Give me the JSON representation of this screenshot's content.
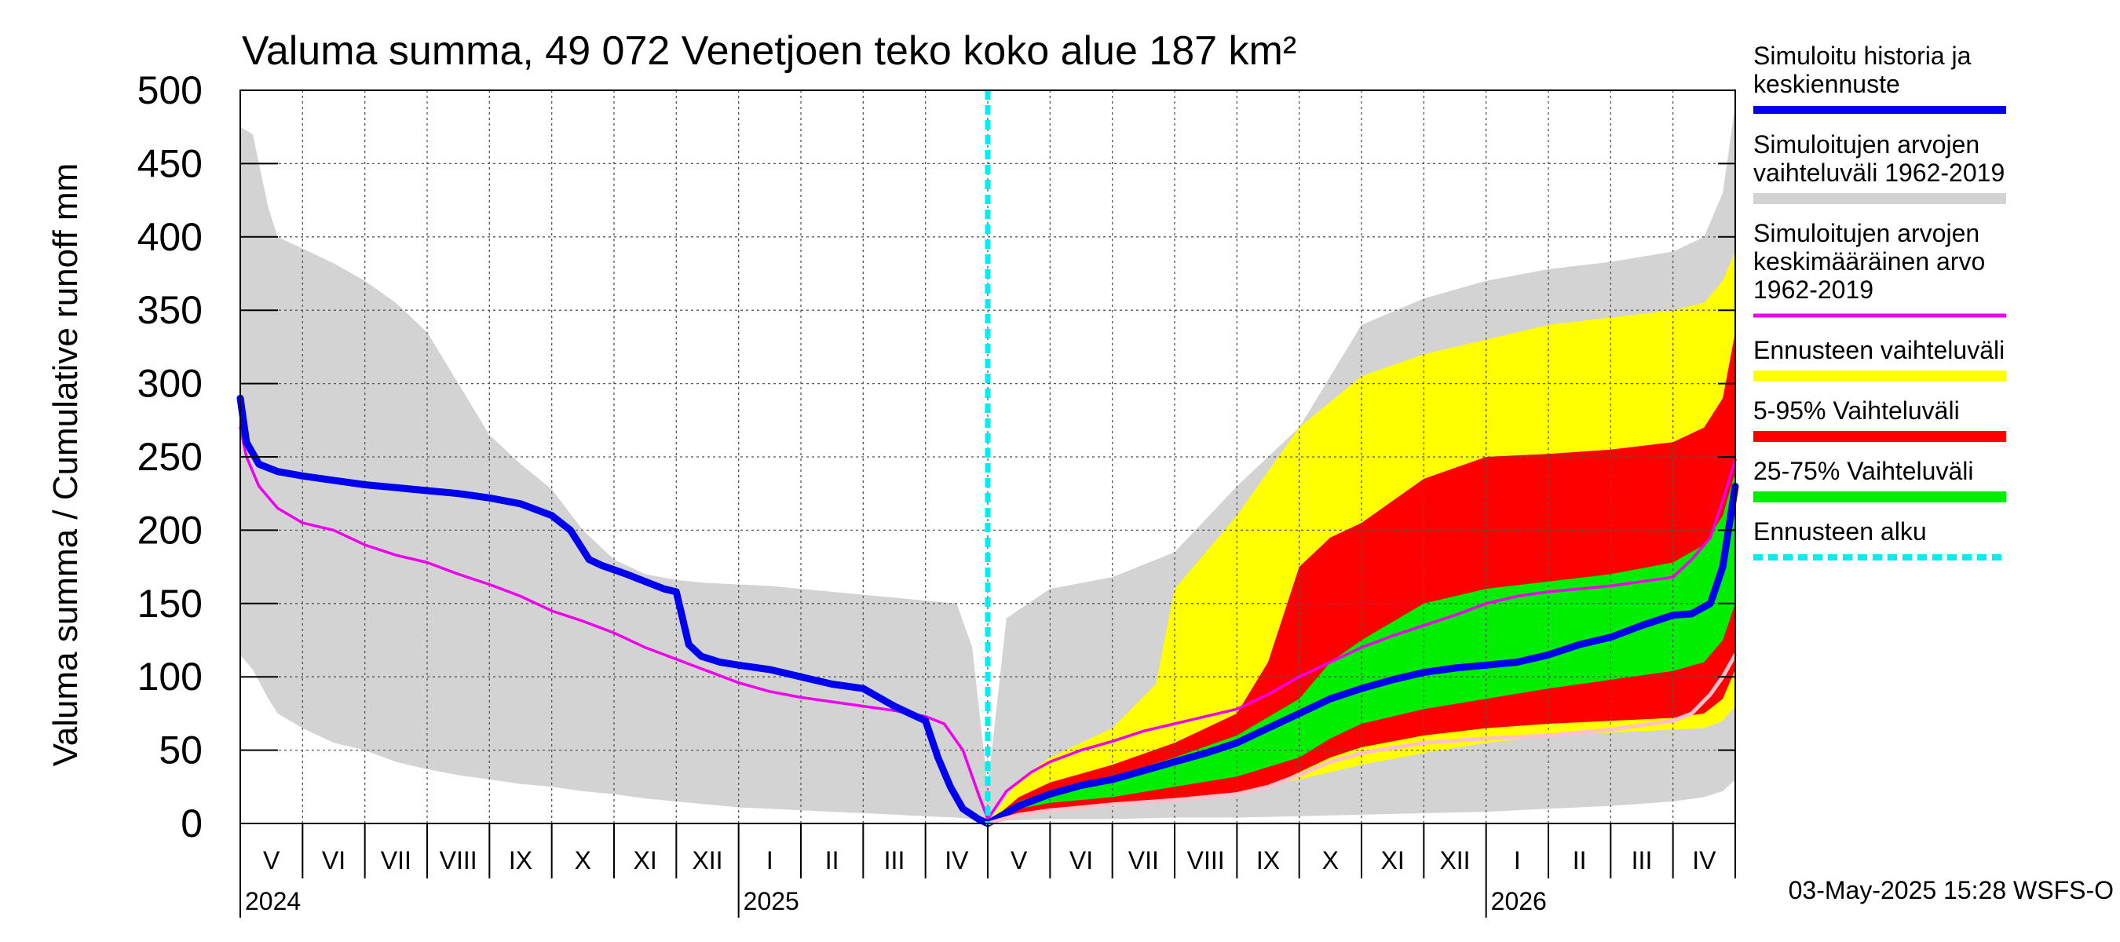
{
  "chart_data": {
    "type": "area",
    "title": "Valuma summa, 49 072 Venetjoen teko koko alue 187 km²",
    "ylabel": "Valuma summa / Cumulative runoff     mm",
    "ylim": [
      0,
      500
    ],
    "yticks": [
      0,
      50,
      100,
      150,
      200,
      250,
      300,
      350,
      400,
      450,
      500
    ],
    "xrange_months": [
      0,
      24
    ],
    "forecast_start_month": 12,
    "month_labels": [
      "V",
      "VI",
      "VII",
      "VIII",
      "IX",
      "X",
      "XI",
      "XII",
      "I",
      "II",
      "III",
      "IV",
      "V",
      "VI",
      "VII",
      "VIII",
      "IX",
      "X",
      "XI",
      "XII",
      "I",
      "II",
      "III",
      "IV"
    ],
    "year_labels": [
      {
        "label": "2024",
        "month": 0
      },
      {
        "label": "2025",
        "month": 8
      },
      {
        "label": "2026",
        "month": 20
      }
    ],
    "timestamp": "03-May-2025 15:28 WSFS-O",
    "legend": [
      {
        "label": "Simuloitu historia ja keskiennuste",
        "lines": [
          "Simuloitu historia ja",
          "keskiennuste"
        ],
        "color": "#0000ee",
        "style": "thick"
      },
      {
        "label": "Simuloitujen arvojen vaihteluväli 1962-2019",
        "lines": [
          "Simuloitujen arvojen",
          "vaihteluväli 1962-2019"
        ],
        "color": "#d3d3d3",
        "style": "band"
      },
      {
        "label": "Simuloitujen arvojen keskimääräinen arvo 1962-2019",
        "lines": [
          "Simuloitujen arvojen",
          "keskimääräinen arvo",
          "   1962-2019"
        ],
        "color": "#ee00ee",
        "style": "line"
      },
      {
        "label": "Ennusteen vaihteluväli",
        "lines": [
          "Ennusteen vaihteluväli"
        ],
        "color": "#ffff00",
        "style": "band"
      },
      {
        "label": "5-95% Vaihteluväli",
        "lines": [
          "5-95% Vaihteluväli"
        ],
        "color": "#ff0000",
        "style": "band"
      },
      {
        "label": "25-75% Vaihteluväli",
        "lines": [
          "25-75% Vaihteluväli"
        ],
        "color": "#00ee00",
        "style": "band"
      },
      {
        "label": "Ennusteen alku",
        "lines": [
          "Ennusteen alku"
        ],
        "color": "#00eeee",
        "style": "dashed"
      }
    ],
    "series": [
      {
        "name": "Simuloitujen arvojen vaihteluväli 1962-2019 (historia)",
        "color": "#d3d3d3",
        "x": [
          0,
          0.2,
          0.45,
          0.6,
          1.0,
          1.5,
          2.0,
          2.5,
          3.0,
          3.5,
          4.0,
          4.5,
          5.0,
          5.5,
          6.0,
          6.5,
          7.0,
          7.5,
          8.0,
          8.5,
          9.0,
          9.5,
          10.0,
          10.5,
          11.0,
          11.5,
          11.75,
          12.0
        ],
        "upper": [
          475,
          470,
          420,
          400,
          392,
          382,
          370,
          355,
          335,
          300,
          265,
          245,
          228,
          200,
          180,
          170,
          166,
          164,
          163,
          162,
          160,
          158,
          156,
          154,
          152,
          150,
          120,
          25
        ],
        "lower": [
          115,
          105,
          85,
          75,
          65,
          55,
          50,
          42,
          37,
          33,
          30,
          27,
          25,
          22,
          20,
          17,
          15,
          13,
          11,
          10,
          9,
          8,
          7,
          6,
          5,
          4,
          3,
          2
        ]
      },
      {
        "name": "Simuloitujen arvojen vaihteluväli 1962-2019 (ennuste)",
        "color": "#d3d3d3",
        "x": [
          12.0,
          12.3,
          13.0,
          14.0,
          15.0,
          16.0,
          17.0,
          18.0,
          19.0,
          20.0,
          21.0,
          22.0,
          23.0,
          23.5,
          23.8,
          24.0
        ],
        "upper": [
          25,
          140,
          160,
          168,
          185,
          230,
          270,
          340,
          358,
          370,
          378,
          383,
          390,
          400,
          430,
          490
        ],
        "lower": [
          0,
          2,
          3,
          3,
          4,
          4,
          5,
          6,
          7,
          8,
          10,
          12,
          15,
          18,
          22,
          30
        ]
      },
      {
        "name": "Ennusteen vaihteluväli",
        "color": "#ffff00",
        "x": [
          12.0,
          12.5,
          13.0,
          14.0,
          14.7,
          15.0,
          15.5,
          16.0,
          17.0,
          18.0,
          19.0,
          20.0,
          21.0,
          22.0,
          23.0,
          23.5,
          23.8,
          24.0
        ],
        "upper": [
          0,
          30,
          45,
          65,
          95,
          160,
          185,
          210,
          270,
          305,
          320,
          330,
          340,
          345,
          350,
          355,
          370,
          390
        ],
        "lower": [
          0,
          5,
          8,
          12,
          15,
          17,
          19,
          22,
          30,
          40,
          48,
          55,
          60,
          62,
          64,
          65,
          70,
          80
        ]
      },
      {
        "name": "5-95% Vaihteluväli",
        "color": "#ff0000",
        "x": [
          12.0,
          12.5,
          13.0,
          14.0,
          15.0,
          16.0,
          16.5,
          17.0,
          17.5,
          18.0,
          19.0,
          20.0,
          21.0,
          22.0,
          23.0,
          23.5,
          23.8,
          24.0
        ],
        "upper": [
          0,
          18,
          28,
          40,
          55,
          75,
          110,
          175,
          195,
          205,
          235,
          250,
          252,
          255,
          260,
          270,
          290,
          335
        ],
        "lower": [
          0,
          7,
          10,
          14,
          17,
          20,
          25,
          35,
          45,
          52,
          60,
          65,
          68,
          70,
          72,
          75,
          85,
          105
        ]
      },
      {
        "name": "25-75% Vaihteluväli",
        "color": "#00ee00",
        "x": [
          12.0,
          12.5,
          13.0,
          14.0,
          15.0,
          16.0,
          17.0,
          17.5,
          18.0,
          19.0,
          20.0,
          21.0,
          22.0,
          23.0,
          23.5,
          23.8,
          24.0
        ],
        "upper": [
          0,
          15,
          22,
          32,
          45,
          60,
          85,
          110,
          125,
          150,
          160,
          165,
          170,
          178,
          190,
          210,
          240
        ],
        "lower": [
          0,
          10,
          14,
          18,
          25,
          32,
          45,
          58,
          68,
          78,
          85,
          92,
          98,
          104,
          110,
          125,
          150
        ]
      },
      {
        "name": "Simuloitujen arvojen keskimääräinen arvo 1962-2019",
        "color": "#ee00ee",
        "x": [
          0,
          0.1,
          0.3,
          0.6,
          1.0,
          1.5,
          2.0,
          2.5,
          3.0,
          3.5,
          4.0,
          4.5,
          5.0,
          5.5,
          6.0,
          6.5,
          7.0,
          7.5,
          8.0,
          8.5,
          9.0,
          9.5,
          10.0,
          10.5,
          11.0,
          11.3,
          11.6,
          11.85,
          12.0,
          12.3,
          12.7,
          13.0,
          13.5,
          14.0,
          14.5,
          15.0,
          15.5,
          16.0,
          16.5,
          17.0,
          17.5,
          18.0,
          18.5,
          19.0,
          19.5,
          20.0,
          20.5,
          21.0,
          21.5,
          22.0,
          22.5,
          23.0,
          23.3,
          23.6,
          23.8,
          24.0
        ],
        "y": [
          270,
          250,
          230,
          215,
          205,
          200,
          190,
          183,
          178,
          170,
          163,
          155,
          145,
          138,
          130,
          120,
          112,
          104,
          96,
          90,
          86,
          83,
          80,
          77,
          73,
          68,
          50,
          20,
          3,
          22,
          35,
          42,
          50,
          56,
          63,
          68,
          73,
          78,
          88,
          100,
          110,
          120,
          128,
          135,
          142,
          150,
          155,
          158,
          160,
          162,
          165,
          168,
          180,
          195,
          220,
          248
        ]
      },
      {
        "name": "Simuloitu historia ja keskiennuste",
        "color": "#0000ee",
        "x": [
          0,
          0.1,
          0.3,
          0.6,
          1.0,
          1.5,
          2.0,
          2.5,
          3.0,
          3.5,
          4.0,
          4.5,
          5.0,
          5.3,
          5.6,
          5.8,
          6.2,
          6.5,
          6.8,
          7.0,
          7.2,
          7.4,
          7.7,
          8.0,
          8.5,
          9.0,
          9.5,
          10.0,
          10.5,
          11.0,
          11.2,
          11.4,
          11.6,
          11.85,
          12.0,
          12.5,
          13.0,
          13.5,
          14.0,
          14.5,
          15.0,
          15.5,
          16.0,
          16.5,
          17.0,
          17.5,
          18.0,
          18.5,
          19.0,
          19.5,
          20.0,
          20.5,
          21.0,
          21.5,
          22.0,
          22.5,
          23.0,
          23.3,
          23.6,
          23.8,
          24.0
        ],
        "y": [
          290,
          260,
          245,
          240,
          237,
          234,
          231,
          229,
          227,
          225,
          222,
          218,
          210,
          200,
          180,
          176,
          170,
          165,
          160,
          158,
          122,
          114,
          110,
          108,
          105,
          100,
          95,
          92,
          80,
          70,
          45,
          25,
          10,
          3,
          0,
          12,
          20,
          26,
          30,
          36,
          42,
          48,
          55,
          65,
          75,
          85,
          92,
          98,
          103,
          106,
          108,
          110,
          115,
          122,
          127,
          135,
          142,
          143,
          150,
          175,
          230
        ]
      },
      {
        "name": "Simuloitu historia ja keskiennuste (valkoinen)",
        "color": "#ffc0cb",
        "x": [
          12.0,
          12.5,
          13.0,
          14.0,
          15.0,
          16.0,
          16.5,
          17.0,
          17.5,
          18.0,
          19.0,
          20.0,
          21.0,
          22.0,
          22.5,
          23.0,
          23.3,
          23.6,
          23.8,
          24.0
        ],
        "y": [
          0,
          6,
          9,
          13,
          16,
          20,
          25,
          33,
          42,
          48,
          55,
          58,
          60,
          64,
          67,
          70,
          75,
          88,
          100,
          115
        ]
      }
    ]
  }
}
